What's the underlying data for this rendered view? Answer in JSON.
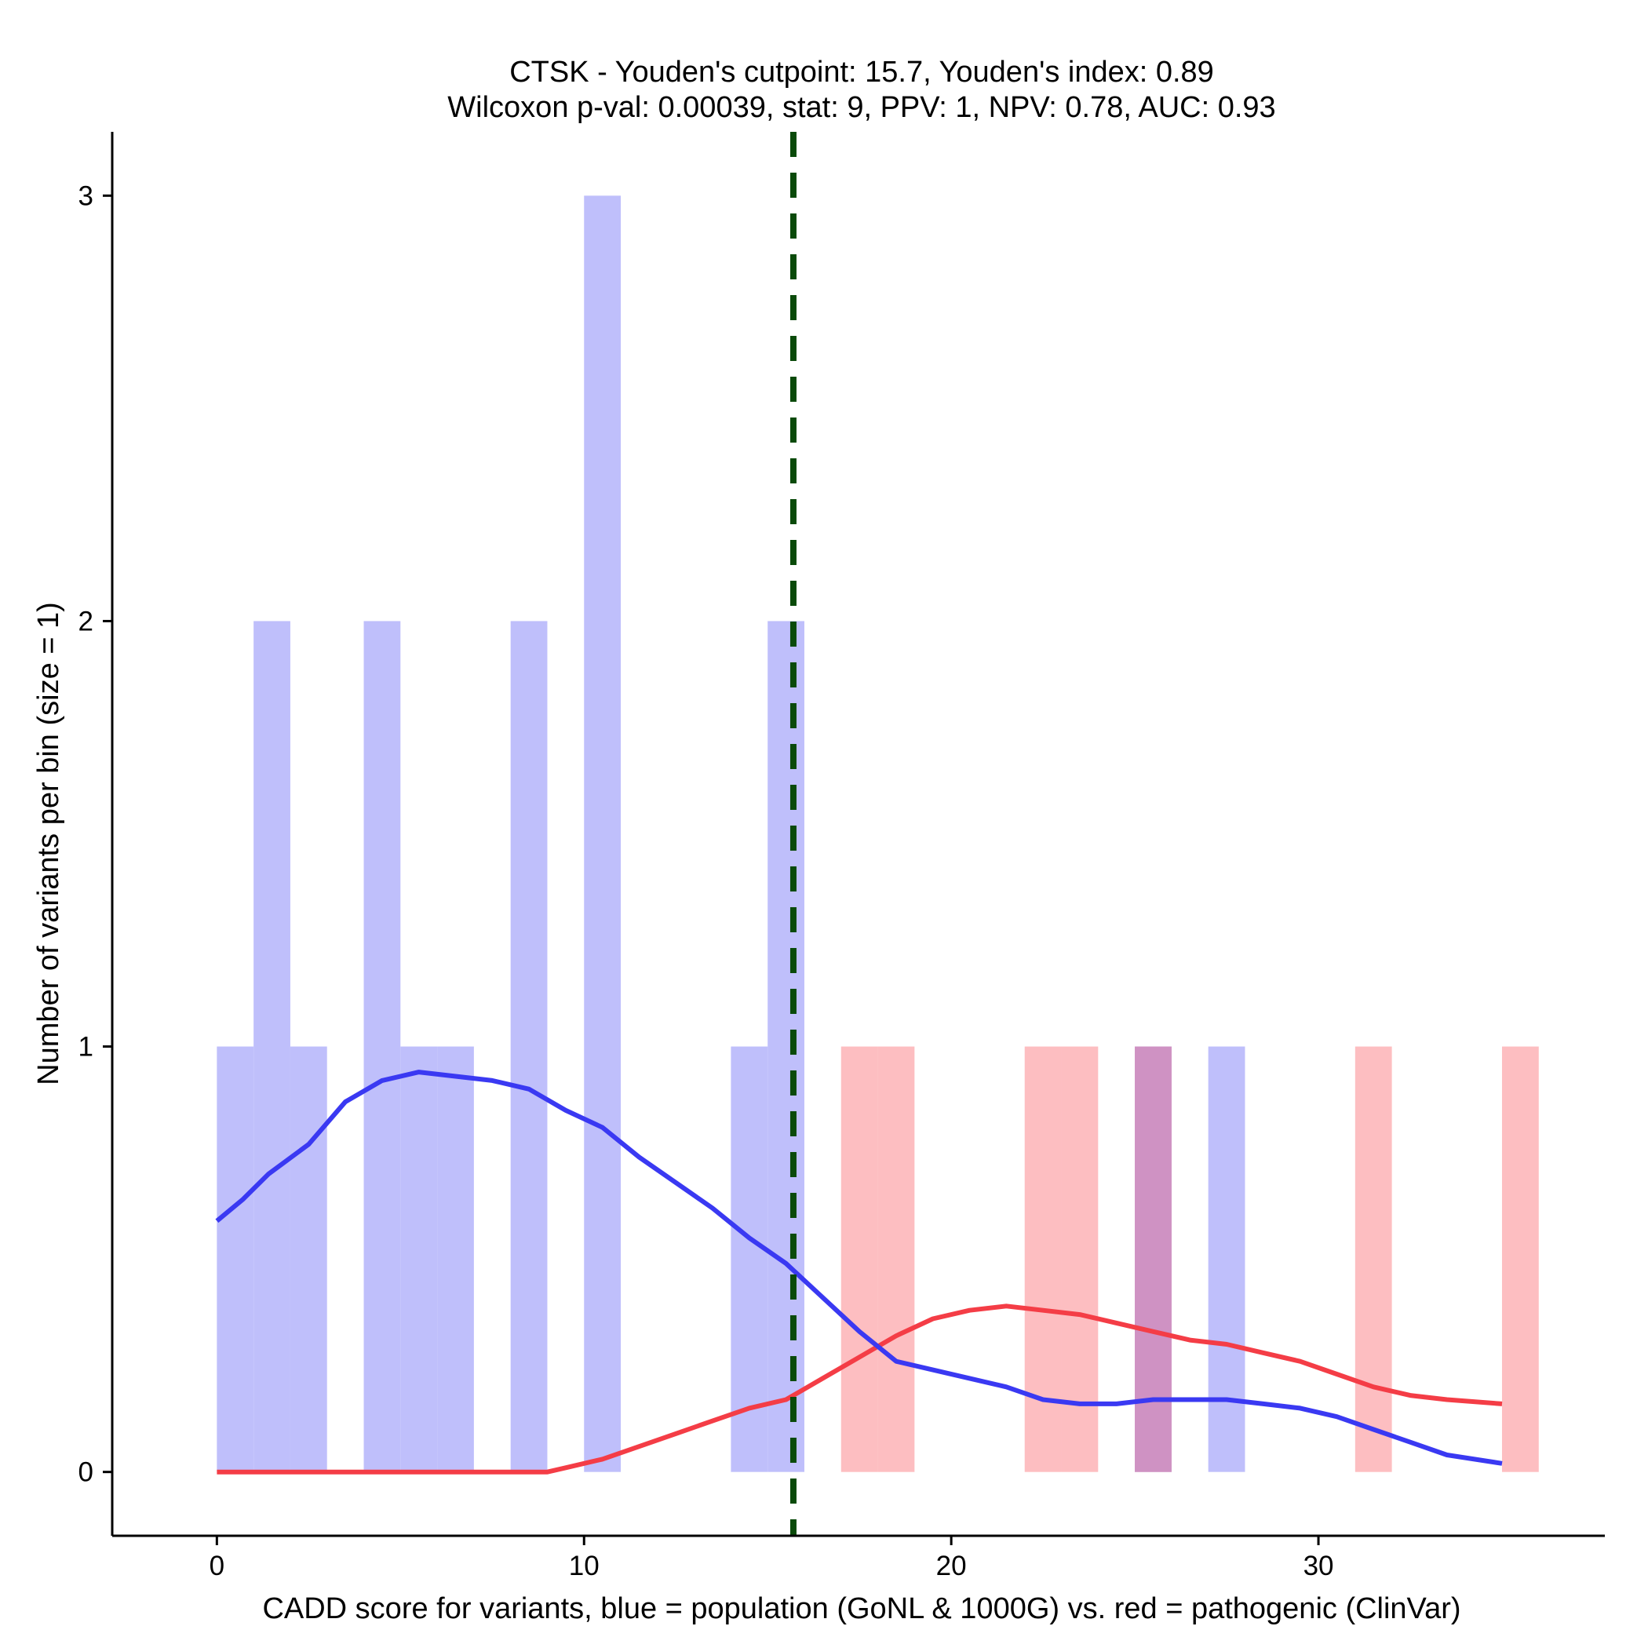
{
  "chart_data": {
    "type": "bar",
    "title_lines": [
      "CTSK - Youden's cutpoint: 15.7, Youden's index: 0.89",
      "Wilcoxon p-val: 0.00039, stat: 9, PPV: 1, NPV: 0.78, AUC: 0.93"
    ],
    "xlabel": "CADD score for variants, blue = population (GoNL & 1000G) vs. red = pathogenic (ClinVar)",
    "ylabel": "Number of variants per bin (size = 1)",
    "xlim": [
      -2.85,
      37.8
    ],
    "ylim": [
      -0.15,
      3.15
    ],
    "xticks": [
      0,
      10,
      20,
      30
    ],
    "yticks": [
      0,
      1,
      2,
      3
    ],
    "bin_width": 1,
    "cutpoint": 15.7,
    "colors": {
      "population_bar": "#bfbffb",
      "pathogenic_bar": "#fdbec1",
      "overlap_bar": "#cf92c3",
      "population_line": "#3a39f2",
      "pathogenic_line": "#f43d46",
      "cutpoint_line": "#0a4a0a"
    },
    "series": [
      {
        "name": "population (GoNL & 1000G)",
        "bins": [
          {
            "start": 0,
            "count": 1
          },
          {
            "start": 1,
            "count": 2
          },
          {
            "start": 2,
            "count": 1
          },
          {
            "start": 4,
            "count": 2
          },
          {
            "start": 5,
            "count": 1
          },
          {
            "start": 6,
            "count": 1
          },
          {
            "start": 8,
            "count": 2
          },
          {
            "start": 10,
            "count": 3
          },
          {
            "start": 14,
            "count": 1
          },
          {
            "start": 15,
            "count": 2
          },
          {
            "start": 25,
            "count": 1
          },
          {
            "start": 27,
            "count": 1
          }
        ],
        "density_x": [
          0,
          0.7,
          1.4,
          2.5,
          3.5,
          4.5,
          5.5,
          6.5,
          7.5,
          8.5,
          9.5,
          10.5,
          11.5,
          12.5,
          13.5,
          14.5,
          15.5,
          16.5,
          17.5,
          18.5,
          19.5,
          20.5,
          21.5,
          22.5,
          23.5,
          24.5,
          25.5,
          26.5,
          27.5,
          28.5,
          29.5,
          30.5,
          31.5,
          32.5,
          33.5,
          35
        ],
        "density_y": [
          0.59,
          0.64,
          0.7,
          0.77,
          0.87,
          0.92,
          0.94,
          0.93,
          0.92,
          0.9,
          0.85,
          0.81,
          0.74,
          0.68,
          0.62,
          0.55,
          0.49,
          0.41,
          0.33,
          0.26,
          0.24,
          0.22,
          0.2,
          0.17,
          0.16,
          0.16,
          0.17,
          0.17,
          0.17,
          0.16,
          0.15,
          0.13,
          0.1,
          0.07,
          0.04,
          0.02
        ]
      },
      {
        "name": "pathogenic (ClinVar)",
        "bins": [
          {
            "start": 17,
            "count": 1
          },
          {
            "start": 18,
            "count": 1
          },
          {
            "start": 22,
            "count": 1
          },
          {
            "start": 23,
            "count": 1
          },
          {
            "start": 25,
            "count": 1
          },
          {
            "start": 31,
            "count": 1
          },
          {
            "start": 35,
            "count": 1
          }
        ],
        "density_x": [
          0,
          3,
          6,
          9,
          9.5,
          10.5,
          11.5,
          12.5,
          13.5,
          14.5,
          15.5,
          16.5,
          17.5,
          18.5,
          19.5,
          20.5,
          21.5,
          22.5,
          23.5,
          24.5,
          25.5,
          26.5,
          27.5,
          28.5,
          29.5,
          30.5,
          31.5,
          32.5,
          33.5,
          35
        ],
        "density_y": [
          0,
          0,
          0,
          0,
          0.01,
          0.03,
          0.06,
          0.09,
          0.12,
          0.15,
          0.17,
          0.22,
          0.27,
          0.32,
          0.36,
          0.38,
          0.39,
          0.38,
          0.37,
          0.35,
          0.33,
          0.31,
          0.3,
          0.28,
          0.26,
          0.23,
          0.2,
          0.18,
          0.17,
          0.16
        ]
      }
    ]
  }
}
